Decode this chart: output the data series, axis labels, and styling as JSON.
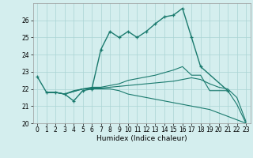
{
  "xlabel": "Humidex (Indice chaleur)",
  "bg_color": "#d4eeee",
  "grid_color": "#aad4d4",
  "line_color": "#1a7a6e",
  "xlim": [
    -0.5,
    23.5
  ],
  "ylim": [
    20,
    27
  ],
  "yticks": [
    20,
    21,
    22,
    23,
    24,
    25,
    26
  ],
  "xticks": [
    0,
    1,
    2,
    3,
    4,
    5,
    6,
    7,
    8,
    9,
    10,
    11,
    12,
    13,
    14,
    15,
    16,
    17,
    18,
    19,
    20,
    21,
    22,
    23
  ],
  "lines": [
    {
      "x": [
        0,
        1,
        2,
        3,
        4,
        5,
        6,
        7,
        8,
        9,
        10,
        11,
        12,
        13,
        14,
        15,
        16,
        17,
        18,
        21
      ],
      "y": [
        22.7,
        21.8,
        21.8,
        21.7,
        21.3,
        21.9,
        22.0,
        24.3,
        25.35,
        25.0,
        25.35,
        25.0,
        25.35,
        25.8,
        26.2,
        26.3,
        26.7,
        25.0,
        23.3,
        21.9
      ],
      "marker": true
    },
    {
      "x": [
        1,
        2,
        3,
        4,
        5,
        6,
        7,
        8,
        9,
        10,
        11,
        12,
        13,
        14,
        15,
        16,
        17,
        18,
        19,
        20,
        21,
        22,
        23
      ],
      "y": [
        21.8,
        21.8,
        21.7,
        21.9,
        22.0,
        22.1,
        22.1,
        22.2,
        22.3,
        22.5,
        22.6,
        22.7,
        22.8,
        22.95,
        23.1,
        23.3,
        22.8,
        22.8,
        21.9,
        21.9,
        21.9,
        21.1,
        20.0
      ],
      "marker": false
    },
    {
      "x": [
        1,
        2,
        3,
        4,
        5,
        6,
        7,
        8,
        9,
        10,
        11,
        12,
        13,
        14,
        15,
        16,
        17,
        18,
        19,
        20,
        21,
        22,
        23
      ],
      "y": [
        21.8,
        21.8,
        21.7,
        21.85,
        22.0,
        22.0,
        22.0,
        22.0,
        21.9,
        21.7,
        21.6,
        21.5,
        21.4,
        21.3,
        21.2,
        21.1,
        21.0,
        20.9,
        20.8,
        20.6,
        20.4,
        20.2,
        20.0
      ],
      "marker": false
    },
    {
      "x": [
        1,
        2,
        3,
        4,
        5,
        6,
        7,
        8,
        9,
        10,
        11,
        12,
        13,
        14,
        15,
        16,
        17,
        18,
        19,
        20,
        21,
        22,
        23
      ],
      "y": [
        21.8,
        21.8,
        21.7,
        21.85,
        22.0,
        22.05,
        22.05,
        22.1,
        22.15,
        22.2,
        22.25,
        22.3,
        22.35,
        22.4,
        22.45,
        22.55,
        22.65,
        22.55,
        22.3,
        22.1,
        22.0,
        21.5,
        20.1
      ],
      "marker": false
    }
  ]
}
